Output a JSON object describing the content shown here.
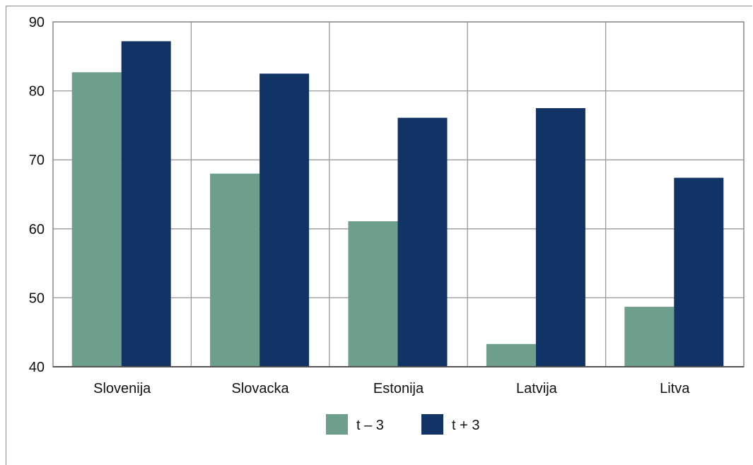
{
  "chart_data": {
    "type": "bar",
    "categories": [
      "Slovenija",
      "Slovacka",
      "Estonija",
      "Latvija",
      "Litva"
    ],
    "series": [
      {
        "name": "t – 3",
        "color": "#6e9e8c",
        "values": [
          82.7,
          68.0,
          61.1,
          43.3,
          48.7
        ]
      },
      {
        "name": "t + 3",
        "color": "#123366",
        "values": [
          87.2,
          82.5,
          76.1,
          77.5,
          67.4
        ]
      }
    ],
    "ylim": [
      40,
      90
    ],
    "yticks": [
      40,
      50,
      60,
      70,
      80,
      90
    ],
    "grid": true,
    "legend_position": "bottom"
  }
}
